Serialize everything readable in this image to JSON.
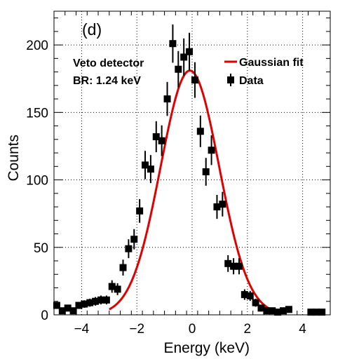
{
  "chart_data": {
    "type": "scatter",
    "panel_label": "(d)",
    "xlabel": "Energy (keV)",
    "ylabel": "Counts",
    "xlim": [
      -5,
      5
    ],
    "ylim": [
      0,
      225
    ],
    "x_ticks": [
      -4,
      -2,
      0,
      2,
      4
    ],
    "y_ticks": [
      0,
      50,
      100,
      150,
      200
    ],
    "grid": true,
    "annotations": [
      "Veto detector",
      "BR: 1.24 keV"
    ],
    "legend": {
      "position": "top-right",
      "entries": [
        {
          "label": "Gaussian fit",
          "style": "line",
          "color": "#e00000"
        },
        {
          "label": "Data",
          "style": "marker",
          "color": "#000000"
        }
      ]
    },
    "series": [
      {
        "name": "Data",
        "style": "points-with-errorbars",
        "color": "#000000",
        "x": [
          -4.9,
          -4.7,
          -4.5,
          -4.3,
          -4.1,
          -3.9,
          -3.7,
          -3.5,
          -3.3,
          -3.1,
          -2.9,
          -2.7,
          -2.5,
          -2.3,
          -2.1,
          -1.9,
          -1.7,
          -1.5,
          -1.3,
          -1.1,
          -0.9,
          -0.7,
          -0.5,
          -0.3,
          -0.1,
          0.1,
          0.3,
          0.5,
          0.7,
          0.9,
          1.1,
          1.3,
          1.5,
          1.7,
          1.9,
          2.1,
          2.3,
          2.5,
          2.7,
          2.9,
          3.1,
          3.3,
          3.5,
          3.7,
          3.9,
          4.1,
          4.3,
          4.5,
          4.7
        ],
        "y": [
          7,
          3,
          5,
          3,
          7,
          8,
          9,
          10,
          11,
          11,
          21,
          19,
          35,
          49,
          56,
          77,
          111,
          108,
          132,
          129,
          160,
          201,
          182,
          191,
          195,
          174,
          136,
          106,
          122,
          80,
          82,
          38,
          36,
          36,
          15,
          14,
          9,
          5,
          3,
          3,
          2,
          3,
          4,
          null,
          null,
          null,
          2,
          2,
          2
        ],
        "errors": [
          2.6,
          1.7,
          2.2,
          1.7,
          2.6,
          2.8,
          3.0,
          3.2,
          3.3,
          3.3,
          4.6,
          4.4,
          5.9,
          7.0,
          7.5,
          8.8,
          10.5,
          10.4,
          11.5,
          11.4,
          12.6,
          14.2,
          13.5,
          13.8,
          14.0,
          13.2,
          11.7,
          10.3,
          11.0,
          8.9,
          9.1,
          6.2,
          6.0,
          6.0,
          3.9,
          3.7,
          3.0,
          2.2,
          1.7,
          1.7,
          1.4,
          1.7,
          2.0,
          null,
          null,
          null,
          1.4,
          1.4,
          1.4
        ]
      },
      {
        "name": "Gaussian fit",
        "style": "line",
        "color": "#e00000",
        "function": "gaussian",
        "amplitude": 181,
        "mean": -0.08,
        "sigma": 1.06,
        "x_range": [
          -3,
          3
        ]
      }
    ]
  }
}
